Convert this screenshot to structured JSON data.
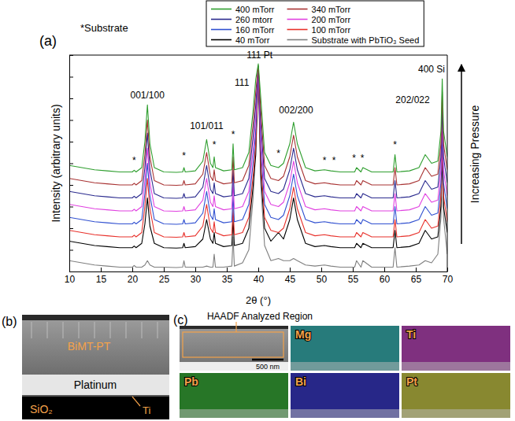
{
  "chart_data": {
    "type": "line",
    "panel_label": "(a)",
    "x_label": "2θ (°)",
    "y_label": "Intensity (arbitrary units)",
    "note": "*Substrate",
    "side_label": "Increasing Pressure",
    "xlim": [
      10,
      70
    ],
    "ylim": [
      0,
      100
    ],
    "xticks": [
      10,
      15,
      20,
      25,
      30,
      35,
      40,
      45,
      50,
      55,
      60,
      65,
      70
    ],
    "yticks": [
      0,
      10,
      20,
      30,
      40,
      50,
      60,
      70,
      80,
      90,
      100
    ],
    "tick_labels": "x",
    "grid": false,
    "legend": "top",
    "x": [
      10,
      12,
      14,
      16,
      18,
      20,
      20.3,
      20.6,
      21.5,
      22.0,
      22.4,
      22.8,
      23.5,
      25,
      27,
      28.0,
      28.2,
      28.4,
      30,
      31.2,
      31.8,
      32.4,
      32.8,
      33.0,
      33.2,
      34.5,
      35.8,
      36.0,
      36.2,
      37.5,
      38.5,
      39.2,
      39.6,
      40.0,
      40.4,
      41.0,
      42.0,
      43.2,
      44.0,
      45.0,
      45.6,
      46.2,
      47.5,
      49,
      50.5,
      51.5,
      53,
      55.3,
      55.6,
      56.3,
      56.6,
      58,
      61.4,
      61.7,
      62.0,
      64,
      65.5,
      66.5,
      67.5,
      68.5,
      69.0,
      69.2,
      69.4,
      70
    ],
    "series": [
      {
        "name": "400 mTorr",
        "color": "#2e9e2e",
        "values": [
          49,
          48,
          47,
          46.5,
          46,
          46,
          46.8,
          46,
          48,
          60,
          77,
          59,
          48,
          46,
          45.8,
          46,
          48,
          46,
          46.5,
          51,
          61,
          50,
          48,
          53,
          48,
          46.5,
          47,
          59,
          47,
          48,
          55,
          75,
          89,
          96,
          80,
          55,
          49,
          48,
          50,
          59,
          69,
          59,
          48,
          46.5,
          47,
          46.5,
          46,
          46,
          48,
          46,
          48,
          46,
          46,
          54,
          46,
          46.5,
          48,
          54,
          50,
          51,
          65,
          89,
          65,
          53
        ]
      },
      {
        "name": "340 mTorr",
        "color": "#a83232",
        "values": [
          43,
          42,
          41,
          40.5,
          40,
          40,
          40.8,
          40,
          42,
          54,
          70,
          53,
          42,
          40,
          39.8,
          40,
          42,
          40,
          40.5,
          45,
          55,
          44,
          42,
          47,
          42,
          40.5,
          41,
          53,
          41,
          42,
          49,
          69,
          83,
          95,
          74,
          49,
          43,
          42,
          44,
          53,
          63,
          53,
          42,
          40.5,
          41,
          40.5,
          40,
          40,
          42,
          40,
          42,
          40,
          40,
          48,
          40,
          40.5,
          42,
          48,
          44,
          45,
          59,
          83,
          59,
          47
        ]
      },
      {
        "name": "260 mtorr",
        "color": "#2a2a8e",
        "values": [
          37,
          36,
          35,
          34.5,
          34,
          34,
          34.8,
          34,
          36,
          48,
          64,
          47,
          36,
          34,
          33.8,
          34,
          36,
          34,
          34.5,
          39,
          49,
          38,
          36,
          41,
          36,
          34.5,
          35,
          47,
          35,
          36,
          43,
          63,
          77,
          95,
          68,
          43,
          37,
          36,
          38,
          47,
          57,
          47,
          36,
          34.5,
          35,
          34.5,
          34,
          34,
          36,
          34,
          36,
          34,
          34,
          42,
          34,
          34.5,
          36,
          42,
          38,
          39,
          53,
          77,
          53,
          41
        ]
      },
      {
        "name": "200 mTorr",
        "color": "#e040e0",
        "values": [
          31,
          30,
          29,
          28.5,
          28,
          28,
          28.8,
          28,
          30,
          42,
          57,
          41,
          30,
          28,
          27.8,
          28,
          30,
          28,
          28.5,
          33,
          43,
          32,
          30,
          35,
          30,
          28.5,
          29,
          41,
          29,
          30,
          37,
          57,
          71,
          94,
          62,
          37,
          31,
          30,
          32,
          41,
          51,
          41,
          30,
          28.5,
          29,
          28.5,
          28,
          28,
          30,
          28,
          30,
          28,
          28,
          36,
          28,
          28.5,
          30,
          36,
          32,
          33,
          47,
          71,
          47,
          35
        ]
      },
      {
        "name": "160 mTorr",
        "color": "#3050d0",
        "values": [
          25,
          24,
          23,
          22.5,
          22,
          22,
          22.8,
          22,
          24,
          36,
          50,
          35,
          24,
          22,
          21.8,
          22,
          24,
          22,
          22.5,
          27,
          37,
          26,
          24,
          29,
          24,
          22.5,
          23,
          35,
          23,
          24,
          31,
          51,
          65,
          94,
          56,
          31,
          25,
          24,
          26,
          35,
          45,
          35,
          24,
          22.5,
          23,
          22.5,
          22,
          22,
          24,
          22,
          24,
          22,
          22,
          30,
          22,
          22.5,
          24,
          30,
          26,
          27,
          41,
          65,
          41,
          29
        ]
      },
      {
        "name": "100 mTorr",
        "color": "#e8312b",
        "values": [
          19,
          18,
          17,
          16.5,
          16,
          16,
          16.8,
          16,
          18,
          30,
          43,
          29,
          18,
          16,
          15.8,
          16,
          18,
          16,
          16.5,
          21,
          31,
          20,
          18,
          23,
          18,
          16.5,
          17,
          29,
          17,
          18,
          25,
          45,
          59,
          93,
          50,
          25,
          19,
          18,
          20,
          29,
          39,
          29,
          18,
          16.5,
          17,
          16.5,
          16,
          16,
          18,
          16,
          18,
          16,
          16,
          24,
          16,
          16.5,
          18,
          24,
          20,
          21,
          35,
          59,
          35,
          23
        ]
      },
      {
        "name": "40 mTorr",
        "color": "#000000",
        "values": [
          14,
          13,
          12,
          11.5,
          11,
          11,
          11.8,
          11,
          13,
          22,
          34,
          21,
          13,
          11,
          10.8,
          11,
          13,
          11,
          11.5,
          15,
          24,
          15,
          13,
          18,
          13,
          11.5,
          12,
          24,
          12,
          13,
          20,
          40,
          54,
          93,
          45,
          20,
          14,
          18,
          15,
          24,
          34,
          24,
          13,
          11.5,
          12,
          11.5,
          11,
          11,
          13,
          11,
          13,
          11,
          11,
          19,
          11,
          11.5,
          13,
          19,
          15,
          16,
          30,
          54,
          30,
          18
        ]
      },
      {
        "name": "Substrate with PbTiO₃ Seed",
        "color": "#7f7f7f",
        "values": [
          5,
          4,
          3,
          2.5,
          2,
          2,
          2.8,
          2,
          2,
          3,
          5,
          3,
          2,
          2,
          1.8,
          2,
          5,
          2,
          2,
          2,
          2.5,
          2,
          2,
          8,
          2,
          2,
          2.5,
          16,
          2.5,
          4,
          10,
          35,
          60,
          92,
          40,
          12,
          5,
          6,
          5,
          5,
          6,
          5,
          3,
          2.5,
          3,
          2.5,
          2,
          2,
          5,
          2,
          5,
          2,
          2,
          11,
          2,
          2.5,
          3,
          5,
          4,
          8,
          25,
          60,
          25,
          8
        ]
      }
    ],
    "annotations": [
      {
        "text": "001/100",
        "x": 22.4,
        "y": 80
      },
      {
        "text": "101/011",
        "x": 31.8,
        "y": 66
      },
      {
        "text": "111",
        "x": 37.4,
        "y": 86
      },
      {
        "text": "111 Pt",
        "x": 40.2,
        "y": 98.5
      },
      {
        "text": "002/200",
        "x": 46.0,
        "y": 73
      },
      {
        "text": "202/022",
        "x": 64.5,
        "y": 78
      },
      {
        "text": "400 Si",
        "x": 67.5,
        "y": 92
      },
      {
        "text": "*",
        "x": 20.3,
        "y": 50
      },
      {
        "text": "*",
        "x": 28.2,
        "y": 52
      },
      {
        "text": "*",
        "x": 33.0,
        "y": 57
      },
      {
        "text": "*",
        "x": 36.0,
        "y": 62
      },
      {
        "text": "*",
        "x": 43.2,
        "y": 53
      },
      {
        "text": "*",
        "x": 50.5,
        "y": 50
      },
      {
        "text": "*",
        "x": 52.0,
        "y": 50
      },
      {
        "text": "*",
        "x": 55.2,
        "y": 51
      },
      {
        "text": "*",
        "x": 56.5,
        "y": 51
      },
      {
        "text": "*",
        "x": 61.7,
        "y": 57
      }
    ]
  },
  "micrograph_b": {
    "panel_label": "(b)",
    "labels": [
      "BiMT-PT",
      "Platinum",
      "SiO₂",
      "Ti"
    ]
  },
  "micrograph_c": {
    "panel_label": "(c)",
    "title": "HAADF Analyzed Region",
    "scale_bar": "500 nm",
    "maps": [
      {
        "label": "Mg",
        "color": "#30c8c8"
      },
      {
        "label": "Ti",
        "color": "#d040d0"
      },
      {
        "label": "Pb",
        "color": "#30c030"
      },
      {
        "label": "Bi",
        "color": "#3030e0"
      },
      {
        "label": "Pt",
        "color": "#e0e040"
      }
    ]
  }
}
